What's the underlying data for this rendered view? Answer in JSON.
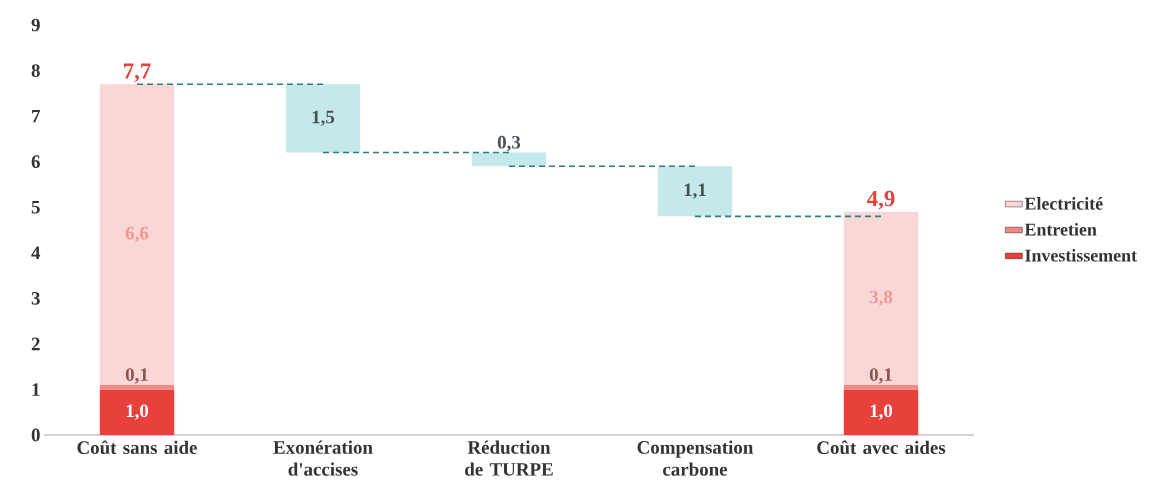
{
  "chart_data": {
    "type": "bar",
    "stacked": true,
    "categories": [
      "Coût sans aide",
      "Exonération d'accises",
      "Réduction de TURPE",
      "Compensation carbone",
      "Coût avec aides"
    ],
    "series": [
      {
        "name": "Investissement",
        "color": "#e8403a",
        "values": [
          1.0,
          null,
          null,
          null,
          1.0
        ],
        "value_labels": [
          "1,0",
          null,
          null,
          null,
          "1,0"
        ]
      },
      {
        "name": "Entretien",
        "color": "#ee8a84",
        "values": [
          0.1,
          null,
          null,
          null,
          0.1
        ],
        "value_labels": [
          "0,1",
          null,
          null,
          null,
          "0,1"
        ]
      },
      {
        "name": "Electricité",
        "color": "#f9d7d6",
        "values": [
          6.6,
          null,
          null,
          null,
          3.8
        ],
        "value_labels": [
          "6,6",
          null,
          null,
          null,
          "3,8"
        ]
      },
      {
        "color": "#c5e8ea",
        "values": [
          null,
          1.5,
          0.3,
          1.1,
          null
        ],
        "base": [
          null,
          6.2,
          5.9,
          4.8,
          null
        ],
        "value_labels": [
          null,
          "1,5",
          "0,3",
          "1,1",
          null
        ]
      },
      {
        "type": "line",
        "color": "#2e7d7d",
        "line_style": "dashed",
        "values": [
          7.7,
          7.7,
          null,
          null,
          null
        ]
      },
      {
        "type": "line",
        "color": "#2e7d7d",
        "line_style": "dashed",
        "values": [
          null,
          6.2,
          6.2,
          null,
          null
        ]
      },
      {
        "type": "line",
        "color": "#2e7d7d",
        "line_style": "dashed",
        "values": [
          null,
          null,
          5.9,
          5.9,
          null
        ]
      },
      {
        "type": "line",
        "color": "#2e7d7d",
        "line_style": "dashed",
        "values": [
          null,
          null,
          null,
          4.8,
          4.8
        ]
      }
    ],
    "totals": [
      "7,7",
      null,
      null,
      null,
      "4,9"
    ],
    "ylim": [
      0,
      9
    ],
    "yticks": [
      0,
      1,
      2,
      3,
      4,
      5,
      6,
      7,
      8,
      9
    ],
    "legend": "right"
  }
}
